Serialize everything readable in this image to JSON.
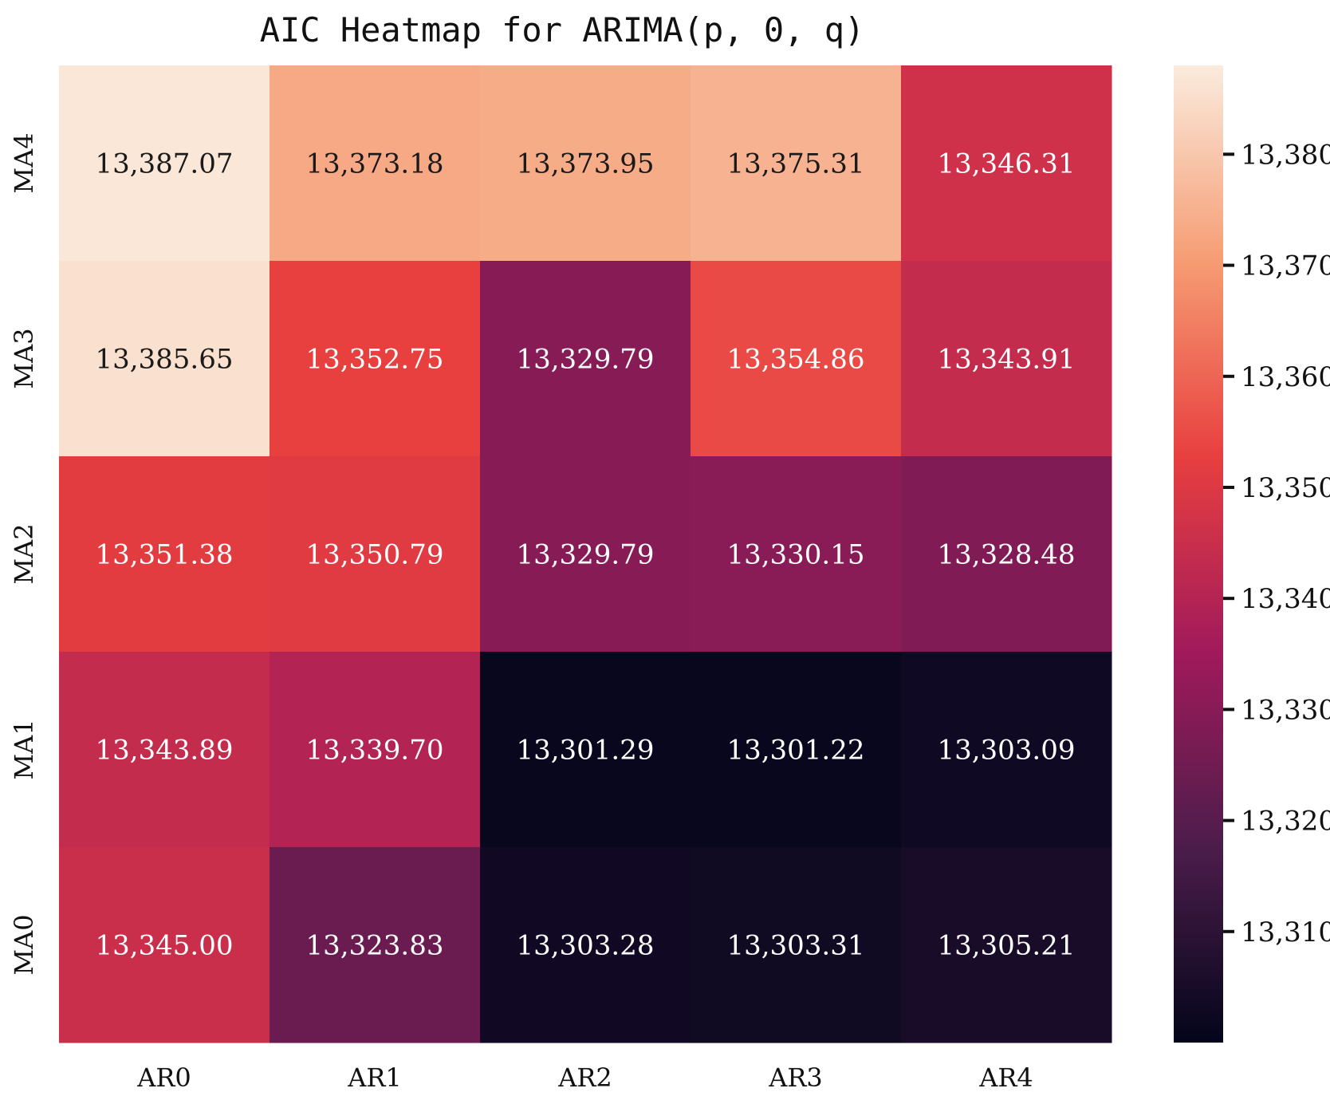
{
  "chart_data": {
    "type": "heatmap",
    "title": "AIC Heatmap for ARIMA(p, 0, q)",
    "x_categories": [
      "AR0",
      "AR1",
      "AR2",
      "AR3",
      "AR4"
    ],
    "y_categories": [
      "MA4",
      "MA3",
      "MA2",
      "MA1",
      "MA0"
    ],
    "values": [
      [
        13387.07,
        13373.18,
        13373.95,
        13375.31,
        13346.31
      ],
      [
        13385.65,
        13352.75,
        13329.79,
        13354.86,
        13343.91
      ],
      [
        13351.38,
        13350.79,
        13329.79,
        13330.15,
        13328.48
      ],
      [
        13343.89,
        13339.7,
        13301.29,
        13301.22,
        13303.09
      ],
      [
        13345.0,
        13323.83,
        13303.28,
        13303.31,
        13305.21
      ]
    ],
    "cell_labels": [
      [
        "13,387.07",
        "13,373.18",
        "13,373.95",
        "13,375.31",
        "13,346.31"
      ],
      [
        "13,385.65",
        "13,352.75",
        "13,329.79",
        "13,354.86",
        "13,343.91"
      ],
      [
        "13,351.38",
        "13,350.79",
        "13,329.79",
        "13,330.15",
        "13,328.48"
      ],
      [
        "13,343.89",
        "13,339.70",
        "13,301.29",
        "13,301.22",
        "13,303.09"
      ],
      [
        "13,345.00",
        "13,323.83",
        "13,303.28",
        "13,303.31",
        "13,305.21"
      ]
    ],
    "colorbar": {
      "range": [
        13300,
        13388
      ],
      "ticks": [
        13310,
        13320,
        13330,
        13340,
        13350,
        13360,
        13370,
        13380
      ],
      "tick_labels": [
        "13,310",
        "13,320",
        "13,330",
        "13,340",
        "13,350",
        "13,360",
        "13,370",
        "13,380"
      ],
      "colormap": "rocket",
      "color_stops": [
        "#03051a",
        "#4c1d4b",
        "#a11a5b",
        "#e83f3f",
        "#f69c73",
        "#faebdd"
      ]
    }
  }
}
